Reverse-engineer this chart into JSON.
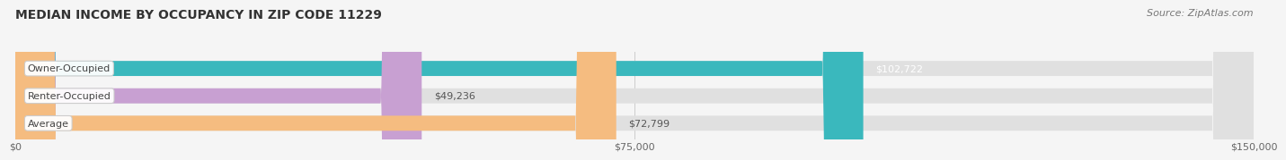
{
  "title": "MEDIAN INCOME BY OCCUPANCY IN ZIP CODE 11229",
  "source": "Source: ZipAtlas.com",
  "categories": [
    "Owner-Occupied",
    "Renter-Occupied",
    "Average"
  ],
  "values": [
    102722,
    49236,
    72799
  ],
  "bar_colors": [
    "#3ab8bd",
    "#c8a0d2",
    "#f5bc80"
  ],
  "value_labels": [
    "$102,722",
    "$49,236",
    "$72,799"
  ],
  "x_ticks": [
    0,
    75000,
    150000
  ],
  "x_tick_labels": [
    "$0",
    "$75,000",
    "$150,000"
  ],
  "xlim": [
    0,
    150000
  ],
  "title_fontsize": 10,
  "bar_label_fontsize": 8,
  "value_fontsize": 8,
  "source_fontsize": 8,
  "background_color": "#f5f5f5",
  "bar_height": 0.55
}
